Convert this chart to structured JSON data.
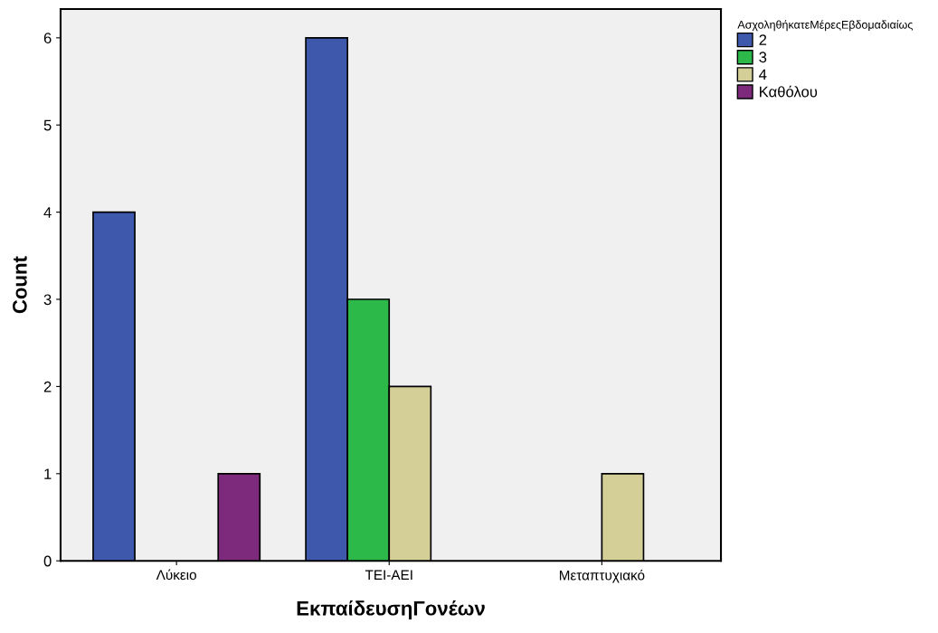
{
  "chart_data": {
    "type": "bar",
    "xlabel": "ΕκπαίδευσηΓονέων",
    "ylabel": "Count",
    "legend_title": "ΑσχοληθήκατεΜέρεςΕβδομαδιαίως",
    "categories": [
      "Λύκειο",
      "ΤΕΙ-ΑΕΙ",
      "Μεταπτυχιακό"
    ],
    "series": [
      {
        "name": "2",
        "color": "#3e58ac",
        "values": [
          4,
          6,
          null
        ]
      },
      {
        "name": "3",
        "color": "#2db94a",
        "values": [
          null,
          3,
          null
        ]
      },
      {
        "name": "4",
        "color": "#d4ce97",
        "values": [
          null,
          2,
          1
        ]
      },
      {
        "name": "Καθόλου",
        "color": "#7e2a7c",
        "values": [
          1,
          null,
          null
        ]
      }
    ],
    "ylim": [
      0,
      6.33
    ],
    "yticks": [
      0,
      1,
      2,
      3,
      4,
      5,
      6
    ],
    "grid": false,
    "legend": "top right"
  }
}
